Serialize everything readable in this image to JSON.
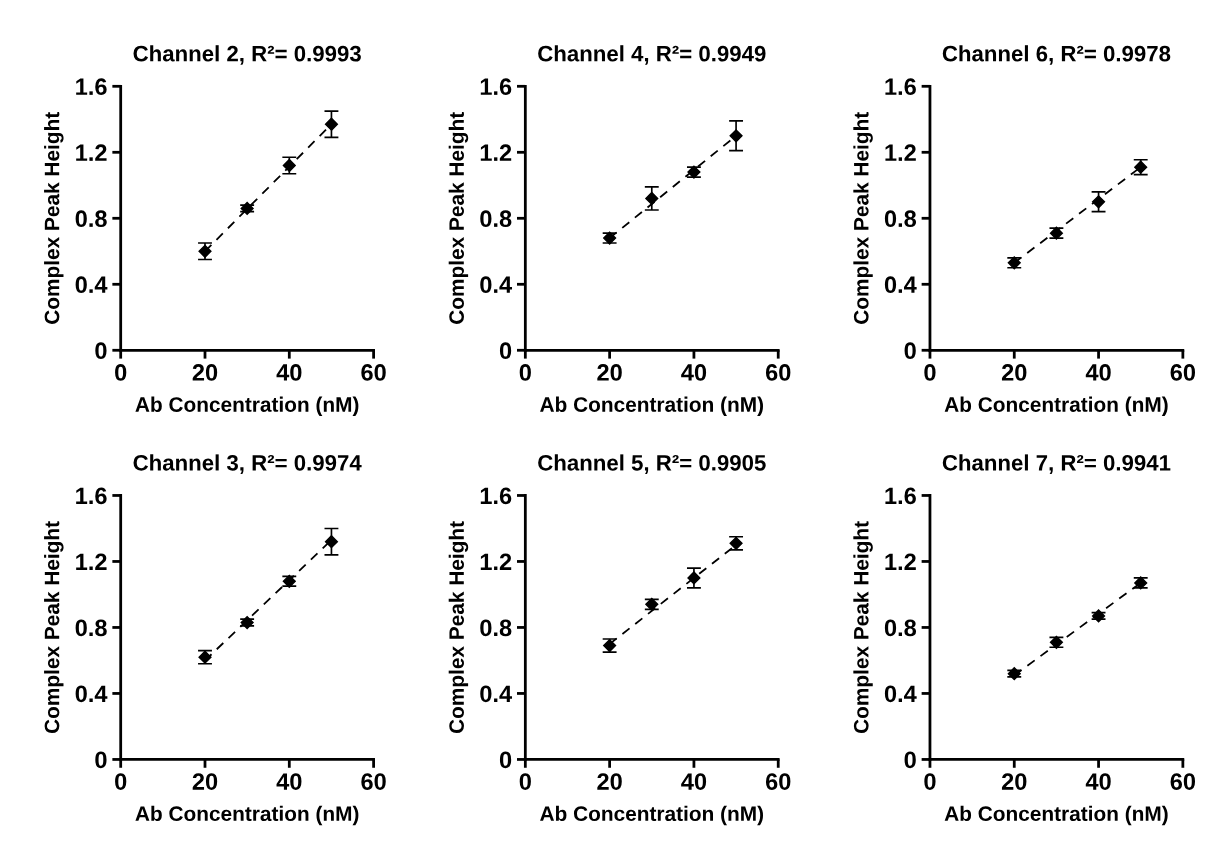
{
  "chart_data": [
    {
      "type": "scatter",
      "title": "Channel 2, R²= 0.9993",
      "xlabel": "Ab Concentration (nM)",
      "ylabel": "Complex Peak Height",
      "xlim": [
        0,
        60
      ],
      "xticks": [
        0,
        20,
        40,
        60
      ],
      "ylim": [
        0,
        1.6
      ],
      "yticks": [
        0,
        0.4,
        0.8,
        1.2,
        1.6
      ],
      "grid": false,
      "series": [
        {
          "marker": "diamond",
          "color": "#000000",
          "x": [
            20,
            30,
            40,
            50
          ],
          "values": [
            0.6,
            0.86,
            1.12,
            1.37
          ],
          "errors": [
            0.05,
            0.02,
            0.05,
            0.08
          ]
        },
        {
          "type": "line",
          "marker": "none",
          "line_style": "dashed",
          "color": "#000000",
          "x": [
            20,
            50
          ],
          "values": [
            0.6,
            1.37
          ]
        }
      ]
    },
    {
      "type": "scatter",
      "title": "Channel 4, R²= 0.9949",
      "xlabel": "Ab Concentration (nM)",
      "ylabel": "Complex Peak Height",
      "xlim": [
        0,
        60
      ],
      "xticks": [
        0,
        20,
        40,
        60
      ],
      "ylim": [
        0,
        1.6
      ],
      "yticks": [
        0,
        0.4,
        0.8,
        1.2,
        1.6
      ],
      "grid": false,
      "series": [
        {
          "marker": "diamond",
          "color": "#000000",
          "x": [
            20,
            30,
            40,
            50
          ],
          "values": [
            0.68,
            0.92,
            1.08,
            1.3
          ],
          "errors": [
            0.03,
            0.07,
            0.03,
            0.09
          ]
        },
        {
          "type": "line",
          "marker": "none",
          "line_style": "dashed",
          "color": "#000000",
          "x": [
            20,
            50
          ],
          "values": [
            0.68,
            1.3
          ]
        }
      ]
    },
    {
      "type": "scatter",
      "title": "Channel 6, R²= 0.9978",
      "xlabel": "Ab Concentration (nM)",
      "ylabel": "Complex Peak Height",
      "xlim": [
        0,
        60
      ],
      "xticks": [
        0,
        20,
        40,
        60
      ],
      "ylim": [
        0,
        1.6
      ],
      "yticks": [
        0,
        0.4,
        0.8,
        1.2,
        1.6
      ],
      "grid": false,
      "series": [
        {
          "marker": "diamond",
          "color": "#000000",
          "x": [
            20,
            30,
            40,
            50
          ],
          "values": [
            0.53,
            0.71,
            0.9,
            1.11
          ],
          "errors": [
            0.03,
            0.03,
            0.06,
            0.045
          ]
        },
        {
          "type": "line",
          "marker": "none",
          "line_style": "dashed",
          "color": "#000000",
          "x": [
            20,
            50
          ],
          "values": [
            0.53,
            1.11
          ]
        }
      ]
    },
    {
      "type": "scatter",
      "title": "Channel 3, R²= 0.9974",
      "xlabel": "Ab Concentration (nM)",
      "ylabel": "Complex Peak Height",
      "xlim": [
        0,
        60
      ],
      "xticks": [
        0,
        20,
        40,
        60
      ],
      "ylim": [
        0,
        1.6
      ],
      "yticks": [
        0,
        0.4,
        0.8,
        1.2,
        1.6
      ],
      "grid": false,
      "series": [
        {
          "marker": "diamond",
          "color": "#000000",
          "x": [
            20,
            30,
            40,
            50
          ],
          "values": [
            0.62,
            0.83,
            1.08,
            1.32
          ],
          "errors": [
            0.04,
            0.02,
            0.03,
            0.08
          ]
        },
        {
          "type": "line",
          "marker": "none",
          "line_style": "dashed",
          "color": "#000000",
          "x": [
            20,
            50
          ],
          "values": [
            0.6,
            1.33
          ]
        }
      ]
    },
    {
      "type": "scatter",
      "title": "Channel 5, R²= 0.9905",
      "xlabel": "Ab Concentration (nM)",
      "ylabel": "Complex Peak Height",
      "xlim": [
        0,
        60
      ],
      "xticks": [
        0,
        20,
        40,
        60
      ],
      "ylim": [
        0,
        1.6
      ],
      "yticks": [
        0,
        0.4,
        0.8,
        1.2,
        1.6
      ],
      "grid": false,
      "series": [
        {
          "marker": "diamond",
          "color": "#000000",
          "x": [
            20,
            30,
            40,
            50
          ],
          "values": [
            0.69,
            0.94,
            1.1,
            1.31
          ],
          "errors": [
            0.04,
            0.03,
            0.06,
            0.04
          ]
        },
        {
          "type": "line",
          "marker": "none",
          "line_style": "dashed",
          "color": "#000000",
          "x": [
            20,
            50
          ],
          "values": [
            0.7,
            1.3
          ]
        }
      ]
    },
    {
      "type": "scatter",
      "title": "Channel 7, R²= 0.9941",
      "xlabel": "Ab Concentration (nM)",
      "ylabel": "Complex Peak Height",
      "xlim": [
        0,
        60
      ],
      "xticks": [
        0,
        20,
        40,
        60
      ],
      "ylim": [
        0,
        1.6
      ],
      "yticks": [
        0,
        0.4,
        0.8,
        1.2,
        1.6
      ],
      "grid": false,
      "series": [
        {
          "marker": "diamond",
          "color": "#000000",
          "x": [
            20,
            30,
            40,
            50
          ],
          "values": [
            0.52,
            0.71,
            0.87,
            1.07
          ],
          "errors": [
            0.02,
            0.03,
            0.02,
            0.03
          ]
        },
        {
          "type": "line",
          "marker": "none",
          "line_style": "dashed",
          "color": "#000000",
          "x": [
            20,
            50
          ],
          "values": [
            0.51,
            1.07
          ]
        }
      ]
    }
  ]
}
